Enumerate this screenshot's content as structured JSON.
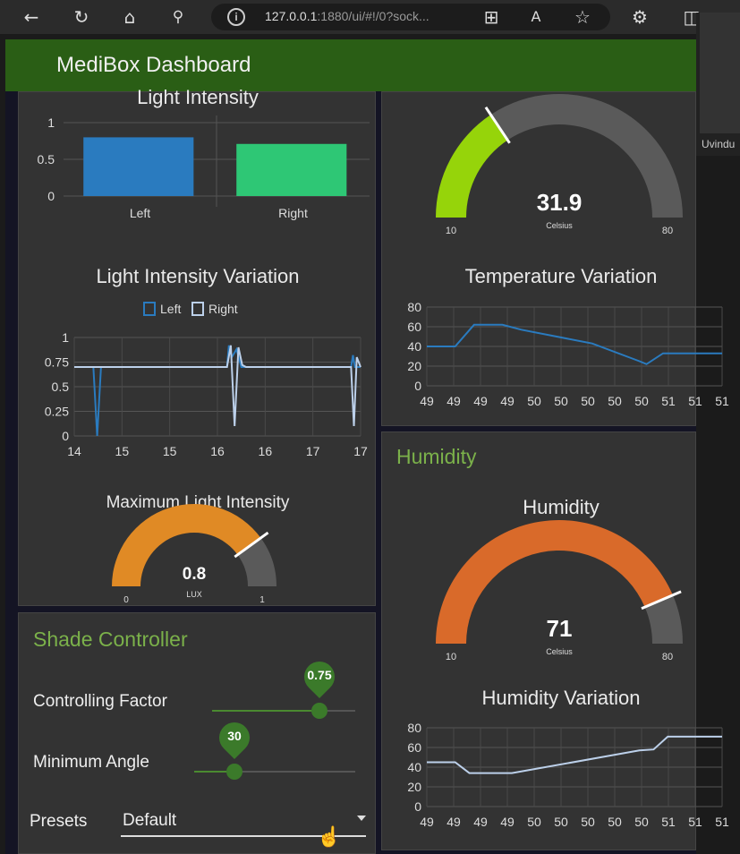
{
  "browser": {
    "url_host": "127.0.0.1",
    "url_rest": ":1880/ui/#!/0?sock...",
    "webcam_name": "Uvindu"
  },
  "header": {
    "title": "MediBox Dashboard"
  },
  "light_intensity": {
    "title": "Light Intensity",
    "chart_data": {
      "type": "bar",
      "title": "Light Intensity",
      "categories": [
        "Left",
        "Right"
      ],
      "values": [
        0.8,
        0.71
      ],
      "colors": [
        "#2a7bbf",
        "#2ec775"
      ],
      "ylim": [
        0,
        1
      ],
      "yticks": [
        "0",
        "0.5",
        "1"
      ]
    }
  },
  "light_variation": {
    "title": "Light Intensity Variation",
    "chart_data": {
      "type": "line",
      "title": "Light Intensity Variation",
      "legend": "top",
      "xlim": [
        14,
        17
      ],
      "ylim": [
        0,
        1
      ],
      "xticks": [
        "14",
        "15",
        "15",
        "16",
        "16",
        "17",
        "17"
      ],
      "yticks": [
        "0",
        "0.25",
        "0.5",
        "0.75",
        "1"
      ],
      "series": [
        {
          "name": "Left",
          "color": "#2a7bbf",
          "x": [
            14.0,
            14.2,
            14.24,
            14.28,
            14.3,
            15.6,
            15.62,
            15.65,
            15.7,
            15.75,
            15.8,
            16.9,
            16.92,
            16.94,
            16.97,
            17.0
          ],
          "y": [
            0.7,
            0.7,
            0.0,
            0.7,
            0.7,
            0.7,
            0.92,
            0.8,
            0.88,
            0.7,
            0.7,
            0.7,
            0.82,
            0.7,
            0.7,
            0.7
          ]
        },
        {
          "name": "Right",
          "color": "#bcd0ea",
          "x": [
            14.0,
            15.6,
            15.64,
            15.68,
            15.72,
            15.76,
            15.8,
            16.9,
            16.93,
            16.96,
            17.0
          ],
          "y": [
            0.7,
            0.7,
            0.92,
            0.1,
            0.9,
            0.72,
            0.7,
            0.7,
            0.1,
            0.8,
            0.7
          ]
        }
      ]
    }
  },
  "max_light": {
    "title": "Maximum Light Intensity",
    "value": "0.8",
    "value_num": 0.8,
    "unit": "LUX",
    "min": "0",
    "max": "1",
    "min_num": 0,
    "max_num": 1,
    "color": "#e08a25"
  },
  "shade": {
    "title": "Shade Controller",
    "controlling_factor": {
      "label": "Controlling Factor",
      "value": "0.75",
      "fraction": 0.75
    },
    "minimum_angle": {
      "label": "Minimum Angle",
      "value": "30",
      "fraction": 0.25
    },
    "presets": {
      "label": "Presets",
      "selected": "Default"
    }
  },
  "temperature": {
    "value": "31.9",
    "value_num": 31.9,
    "unit": "Celsius",
    "min": "10",
    "max": "80",
    "min_num": 10,
    "max_num": 80,
    "color": "#96d40a"
  },
  "temp_variation": {
    "title": "Temperature Variation",
    "chart_data": {
      "type": "line",
      "title": "Temperature Variation",
      "ylim": [
        0,
        80
      ],
      "yticks": [
        "0",
        "20",
        "40",
        "60",
        "80"
      ],
      "xticks": [
        "49",
        "49",
        "49",
        "49",
        "50",
        "50",
        "50",
        "50",
        "50",
        "51",
        "51",
        "51"
      ],
      "series": [
        {
          "color": "#2a7bbf",
          "x": [
            0,
            1.2,
            2.0,
            3.2,
            4.0,
            7.0,
            9.0,
            9.3,
            10.0,
            12.5
          ],
          "y": [
            40,
            40,
            62,
            62,
            57,
            43,
            25,
            22,
            33,
            33
          ]
        }
      ]
    }
  },
  "humidity": {
    "group_title": "Humidity",
    "title": "Humidity",
    "value": "71",
    "value_num": 71,
    "unit": "Celsius",
    "min": "10",
    "max": "80",
    "min_num": 10,
    "max_num": 80,
    "color": "#d96a2a"
  },
  "hum_variation": {
    "title": "Humidity Variation",
    "chart_data": {
      "type": "line",
      "title": "Humidity Variation",
      "ylim": [
        0,
        80
      ],
      "yticks": [
        "0",
        "20",
        "40",
        "60",
        "80"
      ],
      "xticks": [
        "49",
        "49",
        "49",
        "49",
        "50",
        "50",
        "50",
        "50",
        "50",
        "51",
        "51",
        "51"
      ],
      "series": [
        {
          "color": "#bcd0ea",
          "x": [
            0,
            1.2,
            1.8,
            3.6,
            9.0,
            9.6,
            10.2,
            12.5
          ],
          "y": [
            45,
            45,
            34,
            34,
            57,
            58,
            71,
            71
          ]
        }
      ]
    }
  }
}
